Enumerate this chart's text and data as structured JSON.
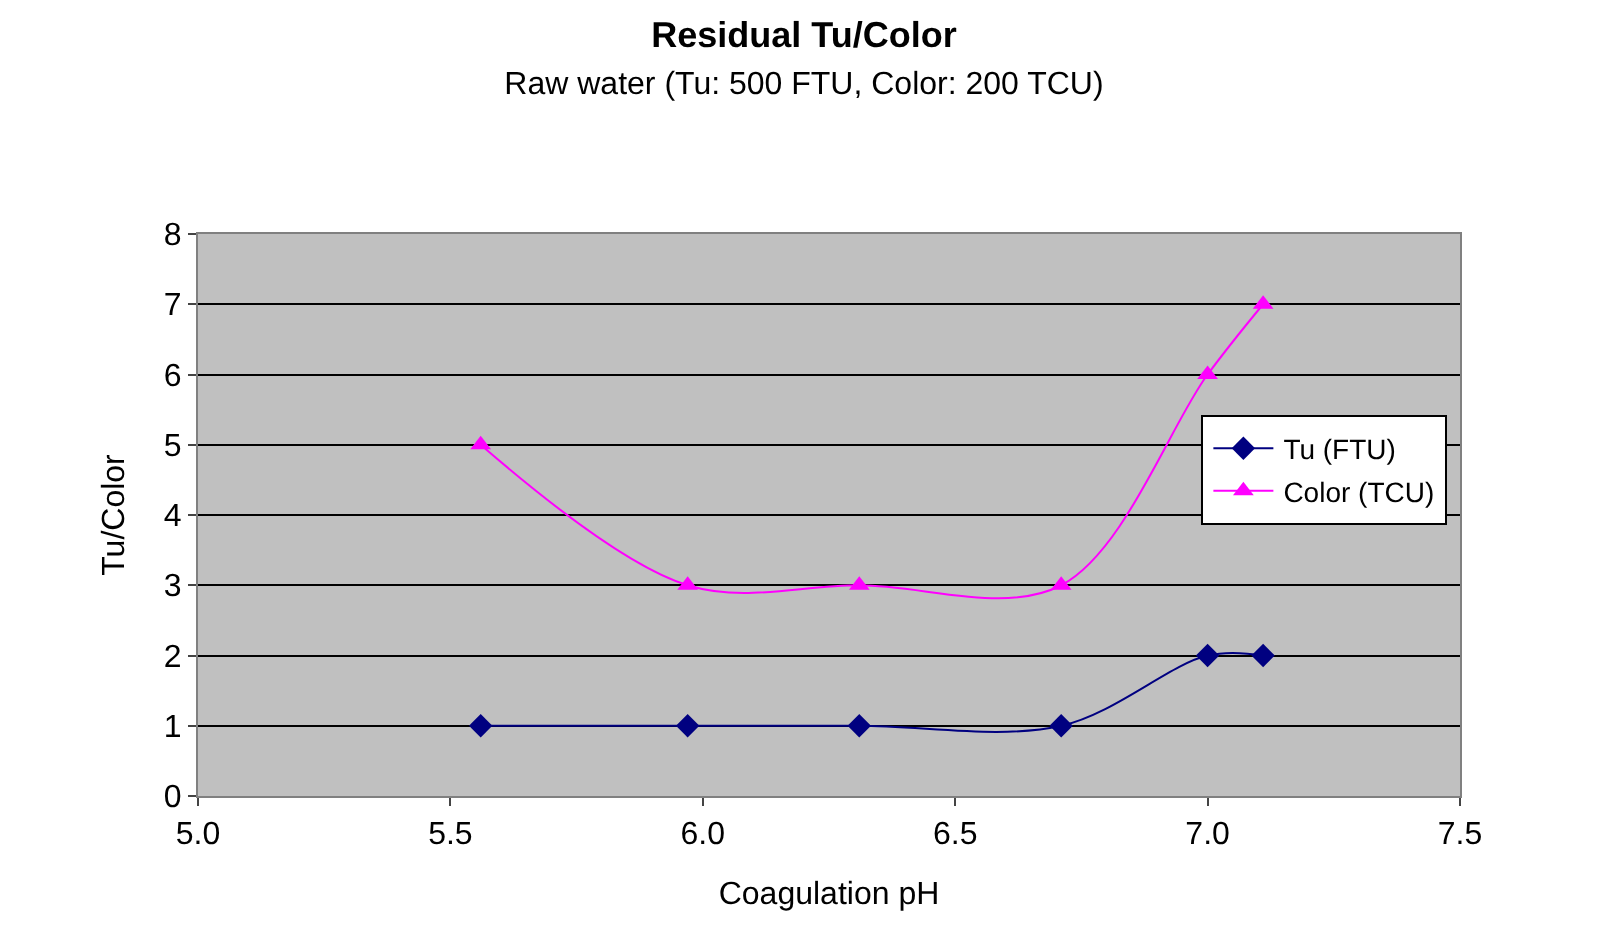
{
  "chart_data": {
    "type": "line",
    "title": "Residual Tu/Color",
    "subtitle": "Raw water (Tu: 500 FTU, Color: 200 TCU)",
    "xlabel": "Coagulation pH",
    "ylabel": "Tu/Color",
    "x": [
      5.56,
      5.97,
      6.31,
      6.71,
      7.0,
      7.11
    ],
    "series": [
      {
        "name": "Tu (FTU)",
        "color": "#000080",
        "marker": "diamond",
        "values": [
          1,
          1,
          1,
          1,
          2,
          2
        ]
      },
      {
        "name": "Color (TCU)",
        "color": "#ff00ff",
        "marker": "triangle",
        "values": [
          5,
          3,
          3,
          3,
          6,
          7
        ]
      }
    ],
    "xlim": [
      5.0,
      7.5
    ],
    "xticks": [
      {
        "value": 5.0,
        "label": "5.0"
      },
      {
        "value": 5.5,
        "label": "5.5"
      },
      {
        "value": 6.0,
        "label": "6.0"
      },
      {
        "value": 6.5,
        "label": "6.5"
      },
      {
        "value": 7.0,
        "label": "7.0"
      },
      {
        "value": 7.5,
        "label": "7.5"
      }
    ],
    "ylim": [
      0,
      8
    ],
    "yticks": [
      0,
      1,
      2,
      3,
      4,
      5,
      6,
      7,
      8
    ],
    "grid": "y",
    "legend": "right"
  }
}
